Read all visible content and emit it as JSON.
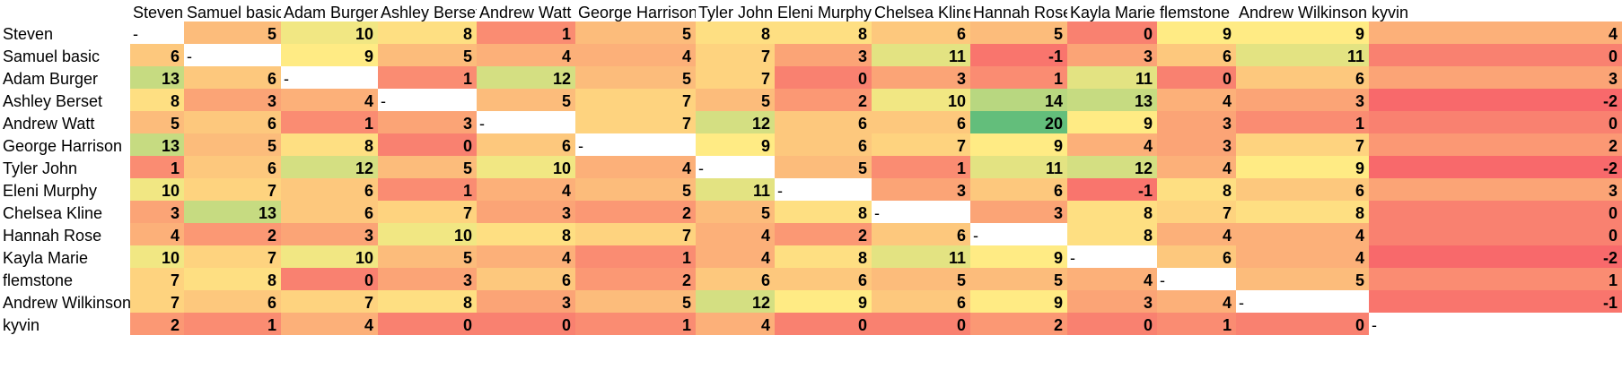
{
  "chart_data": {
    "type": "heatmap",
    "columns": [
      "Steven",
      "Samuel basic",
      "Adam Burger",
      "Ashley Berset",
      "Andrew Watt",
      "George Harrison",
      "Tyler John",
      "Eleni Murphy",
      "Chelsea Kline",
      "Hannah Rose",
      "Kayla Marie",
      "flemstone",
      "Andrew Wilkinson",
      "kyvin"
    ],
    "rows": [
      "Steven",
      "Samuel basic",
      "Adam Burger",
      "Ashley Berset",
      "Andrew Watt",
      "George Harrison",
      "Tyler John",
      "Eleni Murphy",
      "Chelsea Kline",
      "Hannah Rose",
      "Kayla Marie",
      "flemstone",
      "Andrew Wilkinson",
      "kyvin"
    ],
    "values": [
      [
        "-",
        "5",
        "10",
        "8",
        "1",
        "5",
        "8",
        "8",
        "6",
        "5",
        "0",
        "9",
        "9",
        "4"
      ],
      [
        "6",
        "-",
        "9",
        "5",
        "4",
        "4",
        "7",
        "3",
        "11",
        "-1",
        "3",
        "6",
        "11",
        "0"
      ],
      [
        "13",
        "6",
        "-",
        "1",
        "12",
        "5",
        "7",
        "0",
        "3",
        "1",
        "11",
        "0",
        "6",
        "3"
      ],
      [
        "8",
        "3",
        "4",
        "-",
        "5",
        "7",
        "5",
        "2",
        "10",
        "14",
        "13",
        "4",
        "3",
        "-2"
      ],
      [
        "5",
        "6",
        "1",
        "3",
        "-",
        "7",
        "12",
        "6",
        "6",
        "20",
        "9",
        "3",
        "1",
        "0"
      ],
      [
        "13",
        "5",
        "8",
        "0",
        "6",
        "-",
        "9",
        "6",
        "7",
        "9",
        "4",
        "3",
        "7",
        "2"
      ],
      [
        "1",
        "6",
        "12",
        "5",
        "10",
        "4",
        "-",
        "5",
        "1",
        "11",
        "12",
        "4",
        "9",
        "-2"
      ],
      [
        "10",
        "7",
        "6",
        "1",
        "4",
        "5",
        "11",
        "-",
        "3",
        "6",
        "-1",
        "8",
        "6",
        "3"
      ],
      [
        "3",
        "13",
        "6",
        "7",
        "3",
        "2",
        "5",
        "8",
        "-",
        "3",
        "8",
        "7",
        "8",
        "0"
      ],
      [
        "4",
        "2",
        "3",
        "10",
        "8",
        "7",
        "4",
        "2",
        "6",
        "-",
        "8",
        "4",
        "4",
        "0"
      ],
      [
        "10",
        "7",
        "10",
        "5",
        "4",
        "1",
        "4",
        "8",
        "11",
        "9",
        "-",
        "6",
        "4",
        "-2"
      ],
      [
        "7",
        "8",
        "0",
        "3",
        "6",
        "2",
        "6",
        "6",
        "5",
        "5",
        "4",
        "-",
        "5",
        "1"
      ],
      [
        "7",
        "6",
        "7",
        "8",
        "3",
        "5",
        "12",
        "9",
        "6",
        "9",
        "3",
        "4",
        "-",
        "-1"
      ],
      [
        "2",
        "1",
        "4",
        "0",
        "0",
        "1",
        "4",
        "0",
        "0",
        "2",
        "0",
        "1",
        "0",
        "-"
      ]
    ],
    "color_scale": {
      "low": "#f8696b",
      "mid": "#ffeb84",
      "high": "#63be7b",
      "diagonal": "#ffffff"
    },
    "grid": true
  }
}
